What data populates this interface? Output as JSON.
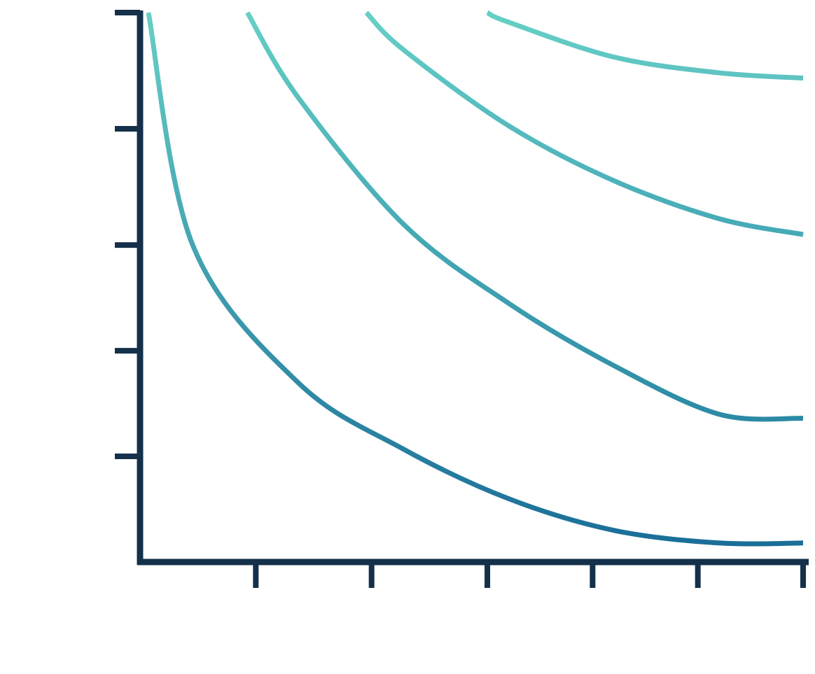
{
  "chart_data": {
    "type": "line",
    "title": "",
    "xlabel": "",
    "ylabel": "",
    "xlim": [
      0,
      6.3
    ],
    "ylim": [
      0,
      5.2
    ],
    "x_ticks": [
      1.1,
      2.2,
      3.3,
      4.3,
      5.3,
      6.3
    ],
    "y_ticks": [
      1.0,
      2.0,
      3.0,
      4.1,
      5.2
    ],
    "grid": false,
    "legend": "none",
    "axis_color": "#14304a",
    "series": [
      {
        "color": "#1a6e98",
        "points": [
          [
            0.08,
            5.2
          ],
          [
            0.5,
            3.0
          ],
          [
            1.5,
            1.7
          ],
          [
            2.5,
            1.07
          ],
          [
            3.5,
            0.6
          ],
          [
            4.5,
            0.3
          ],
          [
            5.5,
            0.18
          ],
          [
            6.3,
            0.18
          ]
        ]
      },
      {
        "color": "#2d8ca6",
        "points": [
          [
            1.02,
            5.2
          ],
          [
            1.5,
            4.4
          ],
          [
            2.5,
            3.2
          ],
          [
            3.5,
            2.45
          ],
          [
            4.5,
            1.86
          ],
          [
            5.5,
            1.4
          ],
          [
            6.3,
            1.36
          ]
        ]
      },
      {
        "color": "#4aaeb9",
        "points": [
          [
            2.15,
            5.2
          ],
          [
            2.5,
            4.85
          ],
          [
            3.5,
            4.13
          ],
          [
            4.5,
            3.61
          ],
          [
            5.5,
            3.25
          ],
          [
            6.3,
            3.1
          ]
        ]
      },
      {
        "color": "#62c7c3",
        "points": [
          [
            3.3,
            5.2
          ],
          [
            3.5,
            5.11
          ],
          [
            4.5,
            4.78
          ],
          [
            5.5,
            4.63
          ],
          [
            6.3,
            4.58
          ]
        ]
      }
    ]
  }
}
